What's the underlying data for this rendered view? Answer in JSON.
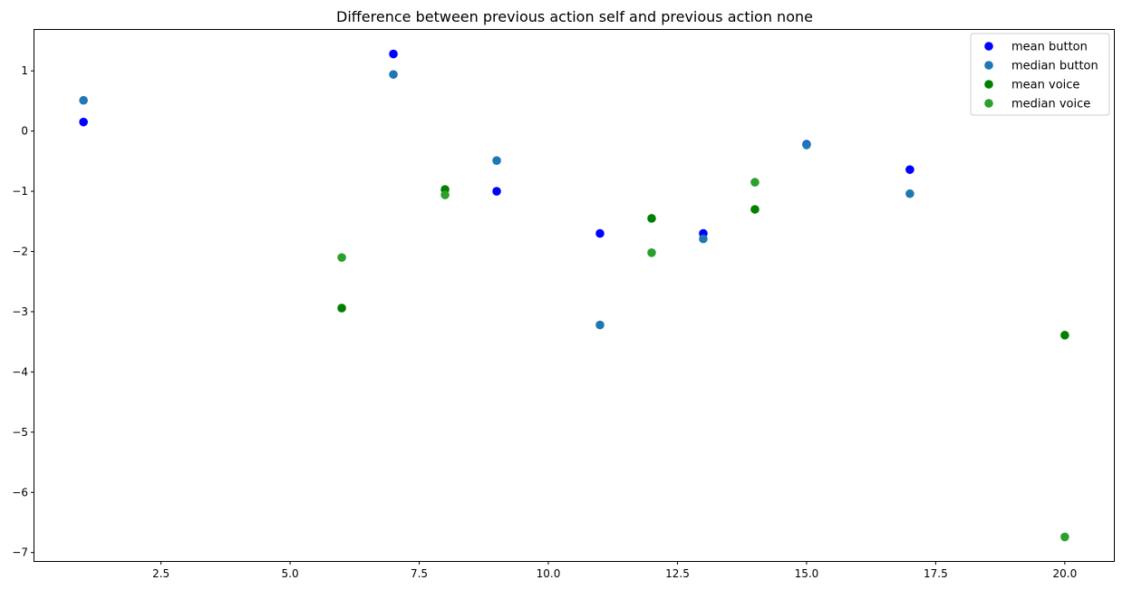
{
  "chart_data": {
    "type": "scatter",
    "title": "Difference between previous action self and previous action none",
    "xlabel": "",
    "ylabel": "",
    "xlim": [
      0.05,
      20.95
    ],
    "ylim": [
      -7.14,
      1.68
    ],
    "xticks": [
      2.5,
      5.0,
      7.5,
      10.0,
      12.5,
      15.0,
      17.5,
      20.0
    ],
    "xtick_labels": [
      "2.5",
      "5.0",
      "7.5",
      "10.0",
      "12.5",
      "15.0",
      "17.5",
      "20.0"
    ],
    "yticks": [
      1,
      0,
      -1,
      -2,
      -3,
      -4,
      -5,
      -6,
      -7
    ],
    "ytick_labels": [
      "1",
      "0",
      "−1",
      "−2",
      "−3",
      "−4",
      "−5",
      "−6",
      "−7"
    ],
    "grid": false,
    "legend_position": "top-right",
    "series": [
      {
        "name": "mean button",
        "color": "#0000ff",
        "points": [
          {
            "x": 1,
            "y": 0.15
          },
          {
            "x": 7,
            "y": 1.28
          },
          {
            "x": 9,
            "y": -1.0
          },
          {
            "x": 11,
            "y": -1.7
          },
          {
            "x": 13,
            "y": -1.7
          },
          {
            "x": 15,
            "y": -0.22
          },
          {
            "x": 17,
            "y": -0.64
          }
        ]
      },
      {
        "name": "median button",
        "color": "#1f77b4",
        "points": [
          {
            "x": 1,
            "y": 0.51
          },
          {
            "x": 7,
            "y": 0.94
          },
          {
            "x": 9,
            "y": -0.49
          },
          {
            "x": 11,
            "y": -3.22
          },
          {
            "x": 13,
            "y": -1.79
          },
          {
            "x": 15,
            "y": -0.23
          },
          {
            "x": 17,
            "y": -1.04
          }
        ]
      },
      {
        "name": "mean voice",
        "color": "#008000",
        "points": [
          {
            "x": 6,
            "y": -2.94
          },
          {
            "x": 8,
            "y": -0.97
          },
          {
            "x": 12,
            "y": -1.45
          },
          {
            "x": 14,
            "y": -1.3
          },
          {
            "x": 20,
            "y": -3.39
          }
        ]
      },
      {
        "name": "median voice",
        "color": "#2ca02c",
        "points": [
          {
            "x": 6,
            "y": -2.1
          },
          {
            "x": 8,
            "y": -1.06
          },
          {
            "x": 12,
            "y": -2.02
          },
          {
            "x": 14,
            "y": -0.85
          },
          {
            "x": 20,
            "y": -6.74
          }
        ]
      }
    ]
  }
}
